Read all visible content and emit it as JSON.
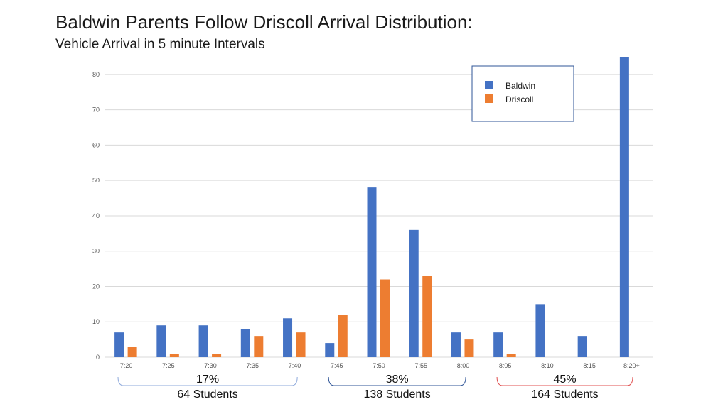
{
  "page": {
    "title": "Baldwin Parents Follow Driscoll Arrival Distribution:",
    "subtitle": "Vehicle Arrival in 5 minute Intervals"
  },
  "colors": {
    "baldwin": "#4472C4",
    "driscoll": "#ED7D31",
    "grid": "#d9d9d9",
    "legend_border": "#2F5597",
    "bracket1": "#8EA9DB",
    "bracket2": "#2F5597",
    "bracket3": "#E05050"
  },
  "chart_data": {
    "type": "bar",
    "title": "Baldwin Parents Follow Driscoll Arrival Distribution:",
    "subtitle": "Vehicle Arrival in 5 minute Intervals",
    "categories": [
      "7:20",
      "7:25",
      "7:30",
      "7:35",
      "7:40",
      "7:45",
      "7:50",
      "7:55",
      "8:00",
      "8:05",
      "8:10",
      "8:15",
      "8:20+"
    ],
    "series": [
      {
        "name": "Baldwin",
        "values": [
          7,
          9,
          9,
          8,
          11,
          4,
          48,
          36,
          7,
          7,
          15,
          6,
          85
        ]
      },
      {
        "name": "Driscoll",
        "values": [
          3,
          1,
          1,
          6,
          7,
          12,
          22,
          23,
          5,
          1,
          0,
          0,
          0
        ]
      }
    ],
    "yticks": [
      0,
      10,
      20,
      30,
      40,
      50,
      60,
      70,
      80
    ],
    "ylim": [
      0,
      85
    ],
    "grid": true,
    "legend": "top-right",
    "groups": [
      {
        "percent": "17%",
        "students": "64 Students",
        "from": 0,
        "to": 4
      },
      {
        "percent": "38%",
        "students": "138 Students",
        "from": 5,
        "to": 8
      },
      {
        "percent": "45%",
        "students": "164 Students",
        "from": 9,
        "to": 12
      }
    ]
  }
}
